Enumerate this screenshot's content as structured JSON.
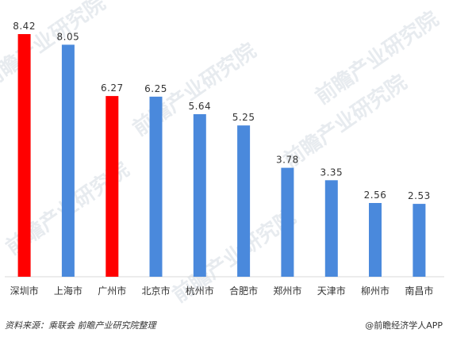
{
  "chart_data": {
    "type": "bar",
    "categories": [
      "深圳市",
      "上海市",
      "广州市",
      "北京市",
      "杭州市",
      "合肥市",
      "郑州市",
      "天津市",
      "柳州市",
      "南昌市"
    ],
    "values": [
      8.42,
      8.05,
      6.27,
      6.25,
      5.64,
      5.25,
      3.78,
      3.35,
      2.56,
      2.53
    ],
    "value_labels": [
      "8.42",
      "8.05",
      "6.27",
      "6.25",
      "5.64",
      "5.25",
      "3.78",
      "3.35",
      "2.56",
      "2.53"
    ],
    "colors": [
      "#ff0000",
      "#4a89dc",
      "#ff0000",
      "#4a89dc",
      "#4a89dc",
      "#4a89dc",
      "#4a89dc",
      "#4a89dc",
      "#4a89dc",
      "#4a89dc"
    ],
    "highlight_color": "#ff0000",
    "base_color": "#4a89dc",
    "ylim": [
      0,
      8.42
    ],
    "grid": false,
    "legend": "none"
  },
  "watermark": "前瞻产业研究院",
  "footer": {
    "source": "资料来源：乘联会 前瞻产业研究院整理",
    "brand": "@前瞻经济学人APP"
  }
}
